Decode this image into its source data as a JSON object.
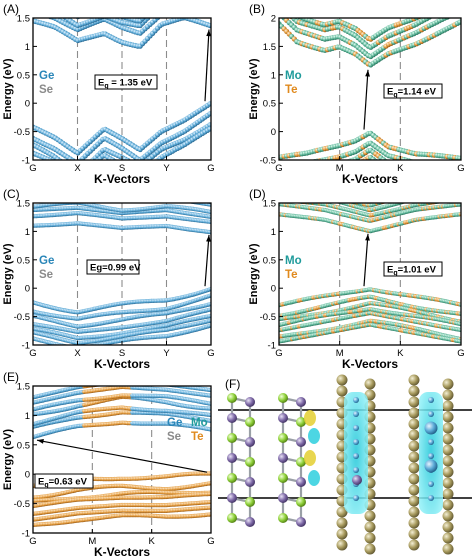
{
  "colors": {
    "ge": "#2a86b8",
    "se": "#8a8a8a",
    "mo": "#1f9b9b",
    "te": "#e08a1e",
    "ball_blue": "#5aa9d6",
    "ball_green": "#5fb79a",
    "ball_orange": "#e49a3a",
    "dashed": "#8c8c8c",
    "struct_lime": "#8fd13a",
    "struct_purple": "#7f6aa8",
    "struct_olive": "#a89b5e",
    "struct_cyan": "#39d1e0",
    "struct_yellow": "#e6d23c"
  },
  "chart_data": [
    {
      "panel": "(A)",
      "type": "scatter",
      "title": "",
      "xlabel": "K-Vectors",
      "ylabel": "Energy (eV)",
      "ylim": [
        -1,
        1.5
      ],
      "yticks": [
        -1,
        -0.5,
        0,
        0.5,
        1,
        1.5
      ],
      "xticks": [
        "G",
        "X",
        "S",
        "Y",
        "G"
      ],
      "legend": [
        {
          "text": "Ge",
          "color": "#2a86b8"
        },
        {
          "text": "Se",
          "color": "#8a8a8a"
        }
      ],
      "annotation": {
        "label": "E",
        "sub": "g",
        "value": " = 1.35 eV",
        "gap_eV": 1.35
      },
      "vbm": {
        "x": 1.0,
        "y": 0.0
      },
      "cbm": {
        "x": 1.0,
        "y": 1.35
      },
      "series": [
        {
          "name": "Ge",
          "color": "#5aa9d6",
          "kind": "cb",
          "points": [
            [
              0,
              1.45
            ],
            [
              0.12,
              1.32
            ],
            [
              0.25,
              1.08
            ],
            [
              0.4,
              1.24
            ],
            [
              0.5,
              1.1
            ],
            [
              0.6,
              1.02
            ],
            [
              0.72,
              1.38
            ],
            [
              0.85,
              1.48
            ],
            [
              1.0,
              1.35
            ]
          ]
        },
        {
          "name": "Ge",
          "color": "#5aa9d6",
          "kind": "vb",
          "points": [
            [
              0,
              -0.42
            ],
            [
              0.12,
              -0.6
            ],
            [
              0.25,
              -0.88
            ],
            [
              0.4,
              -0.45
            ],
            [
              0.5,
              -0.62
            ],
            [
              0.6,
              -0.82
            ],
            [
              0.72,
              -0.5
            ],
            [
              0.85,
              -0.3
            ],
            [
              1.0,
              0.0
            ]
          ]
        }
      ]
    },
    {
      "panel": "(B)",
      "type": "scatter",
      "title": "",
      "xlabel": "K-Vectors",
      "ylabel": "Energy (eV)",
      "ylim": [
        -0.5,
        2
      ],
      "yticks": [
        -0.5,
        0,
        0.5,
        1,
        1.5,
        2
      ],
      "xticks": [
        "G",
        "M",
        "K",
        "G"
      ],
      "legend": [
        {
          "text": "Mo",
          "color": "#1f9b9b"
        },
        {
          "text": "Te",
          "color": "#e08a1e"
        }
      ],
      "annotation": {
        "label": "E",
        "sub": "g",
        "value": "=1.14 eV",
        "gap_eV": 1.14
      },
      "vbm": {
        "x": 0.5,
        "y": 0.0
      },
      "cbm": {
        "x": 0.5,
        "y": 1.14
      },
      "series": [
        {
          "name": "Mo",
          "color": "#5fb79a",
          "kind": "cb",
          "points": [
            [
              0,
              1.9
            ],
            [
              0.1,
              1.6
            ],
            [
              0.25,
              1.45
            ],
            [
              0.33,
              1.5
            ],
            [
              0.42,
              1.35
            ],
            [
              0.5,
              1.14
            ],
            [
              0.6,
              1.35
            ],
            [
              0.75,
              1.55
            ],
            [
              0.9,
              1.8
            ],
            [
              1.0,
              1.95
            ]
          ]
        },
        {
          "name": "Mo",
          "color": "#5fb79a",
          "kind": "vb",
          "points": [
            [
              0,
              -0.45
            ],
            [
              0.15,
              -0.4
            ],
            [
              0.33,
              -0.25
            ],
            [
              0.42,
              -0.15
            ],
            [
              0.5,
              0.0
            ],
            [
              0.6,
              -0.25
            ],
            [
              0.75,
              -0.4
            ],
            [
              1.0,
              -0.48
            ]
          ]
        }
      ]
    },
    {
      "panel": "(C)",
      "type": "scatter",
      "title": "",
      "xlabel": "K-Vectors",
      "ylabel": "Energy (eV)",
      "ylim": [
        -1,
        1.5
      ],
      "yticks": [
        -1,
        -0.5,
        0,
        0.5,
        1,
        1.5
      ],
      "xticks": [
        "G",
        "X",
        "S",
        "Y",
        "G"
      ],
      "legend": [
        {
          "text": "Ge",
          "color": "#2a86b8"
        },
        {
          "text": "Se",
          "color": "#8a8a8a"
        }
      ],
      "annotation": {
        "label": "Eg",
        "sub": "",
        "value": "=0.99 eV",
        "gap_eV": 0.99
      },
      "vbm": {
        "x": 1.0,
        "y": 0.0
      },
      "cbm": {
        "x": 1.0,
        "y": 0.99
      },
      "series": [
        {
          "name": "Ge",
          "color": "#5aa9d6",
          "kind": "cb",
          "points": [
            [
              0,
              1.1
            ],
            [
              0.25,
              1.15
            ],
            [
              0.5,
              1.05
            ],
            [
              0.75,
              1.1
            ],
            [
              1.0,
              0.99
            ]
          ]
        },
        {
          "name": "Ge",
          "color": "#5aa9d6",
          "kind": "vb",
          "points": [
            [
              0,
              -0.25
            ],
            [
              0.25,
              -0.4
            ],
            [
              0.5,
              -0.3
            ],
            [
              0.75,
              -0.2
            ],
            [
              1.0,
              0.0
            ]
          ]
        }
      ]
    },
    {
      "panel": "(D)",
      "type": "scatter",
      "title": "",
      "xlabel": "K-Vectors",
      "ylabel": "Energy (eV)",
      "ylim": [
        -1,
        1.5
      ],
      "yticks": [
        -1,
        -0.5,
        0,
        0.5,
        1,
        1.5
      ],
      "xticks": [
        "G",
        "M",
        "K",
        "G"
      ],
      "legend": [
        {
          "text": "Mo",
          "color": "#1f9b9b"
        },
        {
          "text": "Te",
          "color": "#e08a1e"
        }
      ],
      "annotation": {
        "label": "E",
        "sub": "g",
        "value": "=1.01 eV",
        "gap_eV": 1.01
      },
      "vbm": {
        "x": 0.5,
        "y": 0.0
      },
      "cbm": {
        "x": 0.5,
        "y": 1.01
      },
      "series": [
        {
          "name": "Mo",
          "color": "#5fb79a",
          "kind": "cb",
          "points": [
            [
              0,
              1.3
            ],
            [
              0.25,
              1.2
            ],
            [
              0.5,
              1.01
            ],
            [
              0.75,
              1.2
            ],
            [
              1.0,
              1.3
            ]
          ]
        },
        {
          "name": "Mo",
          "color": "#5fb79a",
          "kind": "vb",
          "points": [
            [
              0,
              -0.3
            ],
            [
              0.25,
              -0.15
            ],
            [
              0.5,
              0.0
            ],
            [
              0.75,
              -0.15
            ],
            [
              1.0,
              -0.3
            ]
          ]
        }
      ]
    },
    {
      "panel": "(E)",
      "type": "scatter",
      "title": "",
      "xlabel": "K-Vectors",
      "ylabel": "Energy (eV)",
      "ylim": [
        -1,
        1.5
      ],
      "yticks": [
        -1,
        -0.5,
        0,
        0.5,
        1,
        1.5
      ],
      "xticks": [
        "G",
        "M",
        "K",
        "G"
      ],
      "legend": [
        {
          "text": "Ge",
          "color": "#2a86b8"
        },
        {
          "text": "Mo",
          "color": "#1f9b9b"
        },
        {
          "text": "Se",
          "color": "#8a8a8a"
        },
        {
          "text": "Te",
          "color": "#e08a1e"
        }
      ],
      "annotation": {
        "label": "E",
        "sub": "g",
        "value": "=0.63 eV",
        "gap_eV": 0.63
      },
      "vbm": {
        "x": 1.0,
        "y": 0.0
      },
      "cbm": {
        "x": 0.0,
        "y": 0.63
      },
      "series": [
        {
          "name": "Ge",
          "color": "#5aa9d6",
          "kind": "cb",
          "points": [
            [
              0,
              0.63
            ],
            [
              0.25,
              0.8
            ],
            [
              0.5,
              0.9
            ],
            [
              0.75,
              0.85
            ],
            [
              1.0,
              0.75
            ]
          ]
        },
        {
          "name": "Te",
          "color": "#e49a3a",
          "kind": "vb",
          "points": [
            [
              0,
              -0.2
            ],
            [
              0.25,
              -0.1
            ],
            [
              0.5,
              -0.05
            ],
            [
              0.75,
              -0.05
            ],
            [
              1.0,
              0.0
            ]
          ]
        }
      ]
    }
  ],
  "structure": {
    "panel": "(F)"
  }
}
